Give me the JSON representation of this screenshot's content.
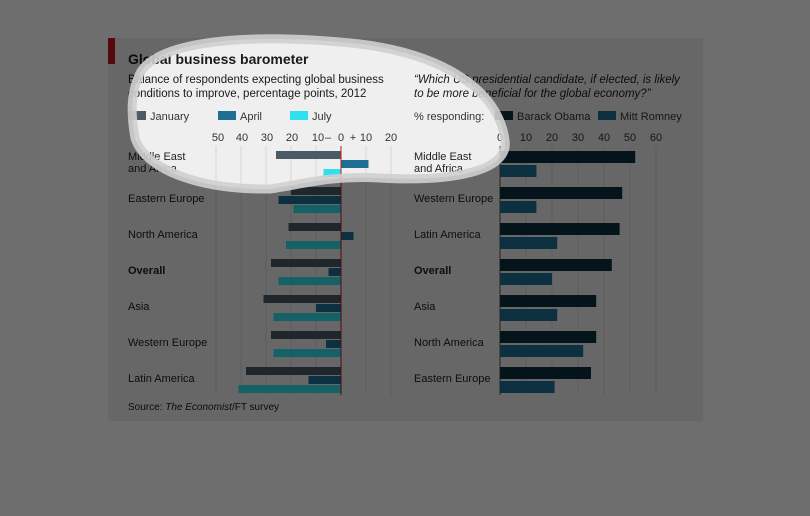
{
  "title": "Global business barometer",
  "left_subtitle": [
    "Balance of respondents expecting global business",
    "conditions to improve, percentage points, 2012"
  ],
  "right_subtitle": [
    "“Which US presidential candidate, if elected, is likely",
    "to be more beneficial for the global economy?”"
  ],
  "right_legend_prefix": "% responding:",
  "source": {
    "prefix": "Source: ",
    "publication": "The Economist",
    "rest": "/FT survey"
  },
  "colors": {
    "background": "#efefef",
    "accent": "#c4151c",
    "january": "#4a5a66",
    "april": "#1f6f94",
    "july": "#2fe0ef",
    "obama": "#0c2d3c",
    "romney": "#1f6f94"
  },
  "chart_data": [
    {
      "type": "bar",
      "orientation": "horizontal",
      "title": "",
      "xlabel": "",
      "ylabel": "",
      "xlim": [
        -50,
        20
      ],
      "ticks": [
        "50",
        "40",
        "30",
        "20",
        "10",
        "–",
        "0",
        "+",
        "10",
        "20"
      ],
      "categories": [
        "Middle East and Africa",
        "Eastern Europe",
        "North America",
        "Overall",
        "Asia",
        "Western Europe",
        "Latin America"
      ],
      "category_label_lines": [
        [
          "Middle East",
          "and Africa"
        ],
        [
          "Eastern Europe"
        ],
        [
          "North America"
        ],
        [
          "Overall"
        ],
        [
          "Asia"
        ],
        [
          "Western Europe"
        ],
        [
          "Latin America"
        ]
      ],
      "bold_category": "Overall",
      "series": [
        {
          "name": "January",
          "values": [
            -26,
            -20,
            -21,
            -28,
            -31,
            -28,
            -38
          ]
        },
        {
          "name": "April",
          "values": [
            11,
            -25,
            5,
            -5,
            -10,
            -6,
            -13
          ]
        },
        {
          "name": "July",
          "values": [
            -7,
            -19,
            -22,
            -25,
            -27,
            -27,
            -41
          ]
        }
      ],
      "zero_line": true,
      "grid": true,
      "legend": "top"
    },
    {
      "type": "bar",
      "orientation": "horizontal",
      "title": "",
      "xlabel": "",
      "ylabel": "",
      "xlim": [
        0,
        60
      ],
      "ticks": [
        "0",
        "10",
        "20",
        "30",
        "40",
        "50",
        "60"
      ],
      "categories": [
        "Middle East and Africa",
        "Western Europe",
        "Latin America",
        "Overall",
        "Asia",
        "North America",
        "Eastern Europe"
      ],
      "category_label_lines": [
        [
          "Middle East",
          "and Africa"
        ],
        [
          "Western Europe"
        ],
        [
          "Latin America"
        ],
        [
          "Overall"
        ],
        [
          "Asia"
        ],
        [
          "North America"
        ],
        [
          "Eastern Europe"
        ]
      ],
      "bold_category": "Overall",
      "series": [
        {
          "name": "Barack Obama",
          "values": [
            52,
            47,
            46,
            43,
            37,
            37,
            35
          ]
        },
        {
          "name": "Mitt Romney",
          "values": [
            14,
            14,
            22,
            20,
            22,
            32,
            21
          ]
        }
      ],
      "grid": true,
      "legend": "top"
    }
  ]
}
